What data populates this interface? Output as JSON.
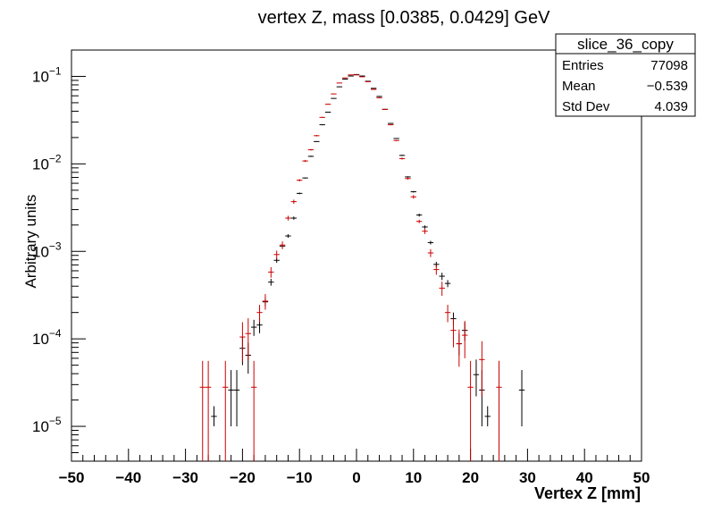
{
  "chart_data": {
    "type": "scatter",
    "title": "vertex Z, mass [0.0385, 0.0429] GeV",
    "xlabel": "Vertex Z [mm]",
    "ylabel": "Arbitrary units",
    "xlim": [
      -50,
      50
    ],
    "ylim": [
      4e-06,
      0.2
    ],
    "log_y": true,
    "x_ticks": [
      "−50",
      "−40",
      "−30",
      "−20",
      "−10",
      "0",
      "10",
      "20",
      "30",
      "40",
      "50"
    ],
    "y_ticks": [
      {
        "base": "10",
        "exp": "−5",
        "value": 1e-05
      },
      {
        "base": "10",
        "exp": "−4",
        "value": 0.0001
      },
      {
        "base": "10",
        "exp": "−3",
        "value": 0.001
      },
      {
        "base": "10",
        "exp": "−2",
        "value": 0.01
      },
      {
        "base": "10",
        "exp": "−1",
        "value": 0.1
      }
    ],
    "grid": false,
    "bin_half_width": 0.5,
    "stats_box": {
      "name": "slice_36_copy",
      "rows": [
        {
          "label": "Entries",
          "value": "77098"
        },
        {
          "label": "Mean",
          "value": "−0.539"
        },
        {
          "label": "Std Dev",
          "value": "4.039"
        }
      ]
    },
    "series": [
      {
        "color": "#000000",
        "points": [
          {
            "x": -25,
            "y": 1.3e-05,
            "lo": 1e-05,
            "hi": 1.7e-05
          },
          {
            "x": -22,
            "y": 2.6e-05,
            "lo": 1e-05,
            "hi": 4.4e-05
          },
          {
            "x": -21,
            "y": 2.6e-05,
            "lo": 1e-05,
            "hi": 4.4e-05
          },
          {
            "x": -20,
            "y": 7.8e-05,
            "lo": 5e-05,
            "hi": 0.000105
          },
          {
            "x": -19,
            "y": 6.5e-05,
            "lo": 4e-05,
            "hi": 9e-05
          },
          {
            "x": -18,
            "y": 0.000136,
            "lo": 0.000108,
            "hi": 0.000165
          },
          {
            "x": -17,
            "y": 0.000144,
            "lo": 0.000116,
            "hi": 0.000172
          },
          {
            "x": -16,
            "y": 0.000265,
            "lo": 0.000235,
            "hi": 0.000295
          },
          {
            "x": -15,
            "y": 0.000445,
            "lo": 0.000405,
            "hi": 0.000485
          },
          {
            "x": -14,
            "y": 0.00079,
            "lo": 0.00074,
            "hi": 0.00084
          },
          {
            "x": -13,
            "y": 0.00115,
            "lo": 0.00109,
            "hi": 0.00121
          },
          {
            "x": -12,
            "y": 0.0015,
            "lo": 0.00143,
            "hi": 0.00157
          },
          {
            "x": -11,
            "y": 0.0024,
            "lo": 0.0023,
            "hi": 0.0025
          },
          {
            "x": -10,
            "y": 0.0046,
            "lo": 0.0045,
            "hi": 0.0047
          },
          {
            "x": -9,
            "y": 0.0069,
            "lo": 0.0068,
            "hi": 0.007
          },
          {
            "x": -8,
            "y": 0.0122,
            "lo": 0.012,
            "hi": 0.0124
          },
          {
            "x": -7,
            "y": 0.018,
            "lo": 0.0178,
            "hi": 0.0182
          },
          {
            "x": -6,
            "y": 0.028,
            "lo": 0.0277,
            "hi": 0.0283
          },
          {
            "x": -5,
            "y": 0.039,
            "lo": 0.0386,
            "hi": 0.0394
          },
          {
            "x": -4,
            "y": 0.056,
            "lo": 0.0555,
            "hi": 0.0565
          },
          {
            "x": -3,
            "y": 0.076,
            "lo": 0.0754,
            "hi": 0.0766
          },
          {
            "x": -2,
            "y": 0.093,
            "lo": 0.0923,
            "hi": 0.0937
          },
          {
            "x": -1,
            "y": 0.101,
            "lo": 0.1003,
            "hi": 0.1017
          },
          {
            "x": 0,
            "y": 0.105,
            "lo": 0.1043,
            "hi": 0.1057
          },
          {
            "x": 1,
            "y": 0.101,
            "lo": 0.1003,
            "hi": 0.1017
          },
          {
            "x": 2,
            "y": 0.088,
            "lo": 0.0873,
            "hi": 0.0887
          },
          {
            "x": 3,
            "y": 0.073,
            "lo": 0.0724,
            "hi": 0.0736
          },
          {
            "x": 4,
            "y": 0.059,
            "lo": 0.0585,
            "hi": 0.0595
          },
          {
            "x": 5,
            "y": 0.042,
            "lo": 0.0416,
            "hi": 0.0424
          },
          {
            "x": 6,
            "y": 0.029,
            "lo": 0.0287,
            "hi": 0.0293
          },
          {
            "x": 7,
            "y": 0.0195,
            "lo": 0.0193,
            "hi": 0.0197
          },
          {
            "x": 8,
            "y": 0.0125,
            "lo": 0.0123,
            "hi": 0.0127
          },
          {
            "x": 9,
            "y": 0.0071,
            "lo": 0.007,
            "hi": 0.0072
          },
          {
            "x": 10,
            "y": 0.0048,
            "lo": 0.0047,
            "hi": 0.0049
          },
          {
            "x": 11,
            "y": 0.0026,
            "lo": 0.0025,
            "hi": 0.0027
          },
          {
            "x": 12,
            "y": 0.0019,
            "lo": 0.00182,
            "hi": 0.00198
          },
          {
            "x": 13,
            "y": 0.00126,
            "lo": 0.0012,
            "hi": 0.00132
          },
          {
            "x": 14,
            "y": 0.00071,
            "lo": 0.00066,
            "hi": 0.00076
          },
          {
            "x": 15,
            "y": 0.00052,
            "lo": 0.00047,
            "hi": 0.00057
          },
          {
            "x": 16,
            "y": 0.00043,
            "lo": 0.00039,
            "hi": 0.00047
          },
          {
            "x": 17,
            "y": 0.00017,
            "lo": 0.000142,
            "hi": 0.0002
          },
          {
            "x": 18,
            "y": 8.8e-05,
            "lo": 6.5e-05,
            "hi": 0.000115
          },
          {
            "x": 19,
            "y": 0.000125,
            "lo": 9.5e-05,
            "hi": 0.000155
          },
          {
            "x": 21,
            "y": 3.9e-05,
            "lo": 2.2e-05,
            "hi": 5.8e-05
          },
          {
            "x": 22,
            "y": 2.6e-05,
            "lo": 1e-05,
            "hi": 4.4e-05
          },
          {
            "x": 23,
            "y": 1.3e-05,
            "lo": 1e-05,
            "hi": 1.7e-05
          },
          {
            "x": 29,
            "y": 2.6e-05,
            "lo": 1e-05,
            "hi": 4.4e-05
          }
        ]
      },
      {
        "color": "#cc0000",
        "points": [
          {
            "x": -27,
            "y": 2.8e-05,
            "lo": 4e-06,
            "hi": 5.6e-05
          },
          {
            "x": -26,
            "y": 2.8e-05,
            "lo": 4e-06,
            "hi": 5.6e-05
          },
          {
            "x": -23,
            "y": 2.8e-05,
            "lo": 4e-06,
            "hi": 5.6e-05
          },
          {
            "x": -20,
            "y": 0.000105,
            "lo": 5.5e-05,
            "hi": 0.000155
          },
          {
            "x": -19,
            "y": 0.000115,
            "lo": 5.8e-05,
            "hi": 0.000172
          },
          {
            "x": -18,
            "y": 2.8e-05,
            "lo": 4e-06,
            "hi": 5.6e-05
          },
          {
            "x": -17,
            "y": 0.0002,
            "lo": 0.000155,
            "hi": 0.000245
          },
          {
            "x": -16,
            "y": 0.00027,
            "lo": 0.000215,
            "hi": 0.000325
          },
          {
            "x": -15,
            "y": 0.00058,
            "lo": 0.0005,
            "hi": 0.00066
          },
          {
            "x": -14,
            "y": 0.00092,
            "lo": 0.00082,
            "hi": 0.00102
          },
          {
            "x": -13,
            "y": 0.00118,
            "lo": 0.00106,
            "hi": 0.0013
          },
          {
            "x": -12,
            "y": 0.0024,
            "lo": 0.00225,
            "hi": 0.00255
          },
          {
            "x": -11,
            "y": 0.0037,
            "lo": 0.0035,
            "hi": 0.0039
          },
          {
            "x": -10,
            "y": 0.0065,
            "lo": 0.0063,
            "hi": 0.0067
          },
          {
            "x": -9,
            "y": 0.0108,
            "lo": 0.0105,
            "hi": 0.0111
          },
          {
            "x": -8,
            "y": 0.0145,
            "lo": 0.0142,
            "hi": 0.0148
          },
          {
            "x": -7,
            "y": 0.021,
            "lo": 0.0206,
            "hi": 0.0214
          },
          {
            "x": -6,
            "y": 0.034,
            "lo": 0.0335,
            "hi": 0.0345
          },
          {
            "x": -5,
            "y": 0.048,
            "lo": 0.0474,
            "hi": 0.0486
          },
          {
            "x": -4,
            "y": 0.063,
            "lo": 0.0623,
            "hi": 0.0637
          },
          {
            "x": -3,
            "y": 0.084,
            "lo": 0.0832,
            "hi": 0.0848
          },
          {
            "x": -2,
            "y": 0.096,
            "lo": 0.0951,
            "hi": 0.0969
          },
          {
            "x": -1,
            "y": 0.104,
            "lo": 0.1031,
            "hi": 0.1049
          },
          {
            "x": 0,
            "y": 0.104,
            "lo": 0.1031,
            "hi": 0.1049
          },
          {
            "x": 1,
            "y": 0.099,
            "lo": 0.0981,
            "hi": 0.0999
          },
          {
            "x": 2,
            "y": 0.087,
            "lo": 0.0862,
            "hi": 0.0878
          },
          {
            "x": 3,
            "y": 0.071,
            "lo": 0.0703,
            "hi": 0.0717
          },
          {
            "x": 4,
            "y": 0.057,
            "lo": 0.0564,
            "hi": 0.0576
          },
          {
            "x": 5,
            "y": 0.042,
            "lo": 0.0415,
            "hi": 0.0425
          },
          {
            "x": 6,
            "y": 0.028,
            "lo": 0.0276,
            "hi": 0.0284
          },
          {
            "x": 7,
            "y": 0.0185,
            "lo": 0.0182,
            "hi": 0.0188
          },
          {
            "x": 8,
            "y": 0.0115,
            "lo": 0.0112,
            "hi": 0.0118
          },
          {
            "x": 9,
            "y": 0.0068,
            "lo": 0.0066,
            "hi": 0.007
          },
          {
            "x": 10,
            "y": 0.0042,
            "lo": 0.004,
            "hi": 0.0044
          },
          {
            "x": 11,
            "y": 0.0022,
            "lo": 0.0021,
            "hi": 0.0023
          },
          {
            "x": 12,
            "y": 0.0017,
            "lo": 0.00158,
            "hi": 0.00182
          },
          {
            "x": 13,
            "y": 0.00096,
            "lo": 0.00086,
            "hi": 0.00106
          },
          {
            "x": 14,
            "y": 0.00062,
            "lo": 0.00054,
            "hi": 0.0007
          },
          {
            "x": 15,
            "y": 0.00038,
            "lo": 0.00031,
            "hi": 0.00045
          },
          {
            "x": 16,
            "y": 0.0002,
            "lo": 0.000155,
            "hi": 0.000245
          },
          {
            "x": 17,
            "y": 0.000125,
            "lo": 8e-05,
            "hi": 0.00017
          },
          {
            "x": 18,
            "y": 8.8e-05,
            "lo": 4.8e-05,
            "hi": 0.000128
          },
          {
            "x": 19,
            "y": 0.00011,
            "lo": 6e-05,
            "hi": 0.00016
          },
          {
            "x": 20,
            "y": 2.8e-05,
            "lo": 4e-06,
            "hi": 5.6e-05
          },
          {
            "x": 22,
            "y": 5.8e-05,
            "lo": 2.2e-05,
            "hi": 9.4e-05
          },
          {
            "x": 25,
            "y": 2.8e-05,
            "lo": 4e-06,
            "hi": 5.6e-05
          }
        ]
      }
    ]
  }
}
